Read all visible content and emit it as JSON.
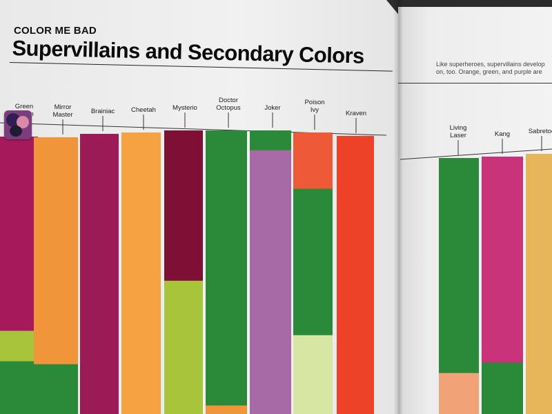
{
  "header": {
    "kicker": "COLOR ME BAD",
    "title": "Supervillains and Secondary Colors"
  },
  "intro_text": {
    "line1": "Like superheroes, supervillains develop",
    "line2": "on, too. Orange, green, and purple are"
  },
  "colors": {
    "magenta": "#a6195b",
    "orange": "#f0953a",
    "crimson": "#9b1b56",
    "light_orange": "#f6a243",
    "dark_red": "#7d1034",
    "lime": "#a7c43a",
    "green": "#2a8a3a",
    "lavender": "#a76aa6",
    "coral": "#ee5a38",
    "pale_lime": "#d8e6a4",
    "red": "#ee4228",
    "pink": "#c93379",
    "peach": "#f2a277",
    "sand": "#e7b55a",
    "page": "#efefef"
  },
  "chart_data": {
    "type": "bar",
    "title": "Supervillains and Secondary Colors",
    "subtitle": "COLOR ME BAD",
    "stacked": true,
    "legend": "none",
    "grid": false,
    "categories": [
      "Green Goblin",
      "Mirror Master",
      "Brainiac",
      "Cheetah",
      "Mysterio",
      "Doctor Octopus",
      "Joker",
      "Poison Ivy",
      "Kraven",
      "Living Laser",
      "Kang",
      "Sabretooth"
    ],
    "bars": [
      {
        "name": "Green Goblin",
        "label_lines": [
          "Green",
          "Goblin"
        ],
        "segments": [
          {
            "color": "#a6195b",
            "value": 0.7
          },
          {
            "color": "#a7c43a",
            "value": 0.11
          },
          {
            "color": "#2a8a3a",
            "value": 0.19
          }
        ]
      },
      {
        "name": "Mirror Master",
        "label_lines": [
          "Mirror",
          "Master"
        ],
        "segments": [
          {
            "color": "#f0953a",
            "value": 0.82
          },
          {
            "color": "#2a8a3a",
            "value": 0.18
          }
        ]
      },
      {
        "name": "Brainiac",
        "label_lines": [
          "Brainiac"
        ],
        "segments": [
          {
            "color": "#9b1b56",
            "value": 1.0
          }
        ]
      },
      {
        "name": "Cheetah",
        "label_lines": [
          "Cheetah"
        ],
        "segments": [
          {
            "color": "#f6a243",
            "value": 1.0
          }
        ]
      },
      {
        "name": "Mysterio",
        "label_lines": [
          "Mysterio"
        ],
        "segments": [
          {
            "color": "#7d1034",
            "value": 0.53
          },
          {
            "color": "#a7c43a",
            "value": 0.47
          }
        ]
      },
      {
        "name": "Doctor Octopus",
        "label_lines": [
          "Doctor",
          "Octopus"
        ],
        "segments": [
          {
            "color": "#2a8a3a",
            "value": 0.97
          },
          {
            "color": "#f0953a",
            "value": 0.03
          }
        ]
      },
      {
        "name": "Joker",
        "label_lines": [
          "Joker"
        ],
        "segments": [
          {
            "color": "#2a8a3a",
            "value": 0.07
          },
          {
            "color": "#a76aa6",
            "value": 0.93
          }
        ]
      },
      {
        "name": "Poison Ivy",
        "label_lines": [
          "Poison",
          "Ivy"
        ],
        "segments": [
          {
            "color": "#ee5a38",
            "value": 0.2
          },
          {
            "color": "#2a8a3a",
            "value": 0.52
          },
          {
            "color": "#d8e6a4",
            "value": 0.28
          }
        ]
      },
      {
        "name": "Kraven",
        "label_lines": [
          "Kraven"
        ],
        "segments": [
          {
            "color": "#ee4228",
            "value": 1.0
          }
        ]
      },
      {
        "name": "Living Laser",
        "label_lines": [
          "Living",
          "Laser"
        ],
        "segments": [
          {
            "color": "#2a8a3a",
            "value": 0.84
          },
          {
            "color": "#f2a277",
            "value": 0.16
          }
        ]
      },
      {
        "name": "Kang",
        "label_lines": [
          "Kang"
        ],
        "segments": [
          {
            "color": "#c93379",
            "value": 0.8
          },
          {
            "color": "#2a8a3a",
            "value": 0.2
          }
        ]
      },
      {
        "name": "Sabretooth",
        "label_lines": [
          "Sabretoo"
        ],
        "segments": [
          {
            "color": "#e7b55a",
            "value": 1.0
          }
        ]
      }
    ]
  }
}
